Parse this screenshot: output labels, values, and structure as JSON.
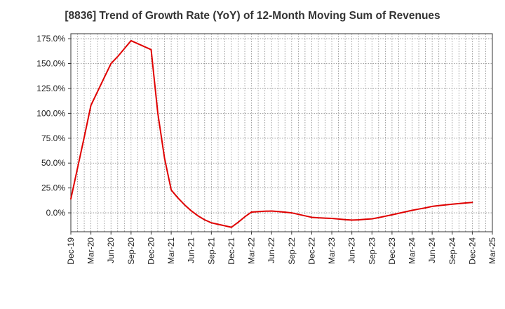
{
  "chart_data": {
    "type": "line",
    "title": "[8836]  Trend of Growth Rate (YoY) of 12-Month Moving Sum of Revenues",
    "xlabel": "",
    "ylabel": "",
    "x_ticks": [
      "Dec-19",
      "Mar-20",
      "Jun-20",
      "Sep-20",
      "Dec-20",
      "Mar-21",
      "Jun-21",
      "Sep-21",
      "Dec-21",
      "Mar-22",
      "Jun-22",
      "Sep-22",
      "Dec-22",
      "Mar-23",
      "Jun-23",
      "Sep-23",
      "Dec-23",
      "Mar-24",
      "Jun-24",
      "Sep-24",
      "Dec-24",
      "Mar-25"
    ],
    "y_ticks": [
      "175.0%",
      "150.0%",
      "125.0%",
      "100.0%",
      "75.0%",
      "50.0%",
      "25.0%",
      "0.0%"
    ],
    "ylim": [
      -19,
      180
    ],
    "y_tick_values": [
      175,
      150,
      125,
      100,
      75,
      50,
      25,
      0
    ],
    "grid": true,
    "line_color": "#e00000",
    "series": [
      {
        "name": "",
        "x": [
          "Dec-19",
          "Jan-20",
          "Feb-20",
          "Mar-20",
          "Apr-20",
          "May-20",
          "Jun-20",
          "Jul-20",
          "Aug-20",
          "Sep-20",
          "Oct-20",
          "Nov-20",
          "Dec-20",
          "Jan-21",
          "Feb-21",
          "Mar-21",
          "Apr-21",
          "May-21",
          "Jun-21",
          "Jul-21",
          "Aug-21",
          "Sep-21",
          "Oct-21",
          "Nov-21",
          "Dec-21",
          "Jan-22",
          "Feb-22",
          "Mar-22",
          "Apr-22",
          "May-22",
          "Jun-22",
          "Jul-22",
          "Aug-22",
          "Sep-22",
          "Oct-22",
          "Nov-22",
          "Dec-22",
          "Jan-23",
          "Feb-23",
          "Mar-23",
          "Apr-23",
          "May-23",
          "Jun-23",
          "Jul-23",
          "Aug-23",
          "Sep-23",
          "Oct-23",
          "Nov-23",
          "Dec-23",
          "Jan-24",
          "Feb-24",
          "Mar-24",
          "Apr-24",
          "May-24",
          "Jun-24",
          "Jul-24",
          "Aug-24",
          "Sep-24",
          "Oct-24",
          "Nov-24",
          "Dec-24"
        ],
        "values": [
          14,
          45,
          76,
          108,
          122,
          136,
          150,
          157,
          165,
          173,
          170,
          167,
          164,
          100,
          55,
          23,
          15,
          8,
          2,
          -3,
          -7,
          -10,
          -11.5,
          -13,
          -14.5,
          -9.5,
          -4,
          0.8,
          1.2,
          1.6,
          1.8,
          1.3,
          0.7,
          0,
          -1.5,
          -3,
          -4.5,
          -5,
          -5.3,
          -5.6,
          -6.2,
          -6.8,
          -7.3,
          -7,
          -6.5,
          -6,
          -4.8,
          -3.4,
          -2,
          -0.5,
          1,
          2.5,
          3.8,
          5,
          6.5,
          7.3,
          8,
          8.7,
          9.3,
          9.9,
          10.5
        ]
      }
    ]
  }
}
